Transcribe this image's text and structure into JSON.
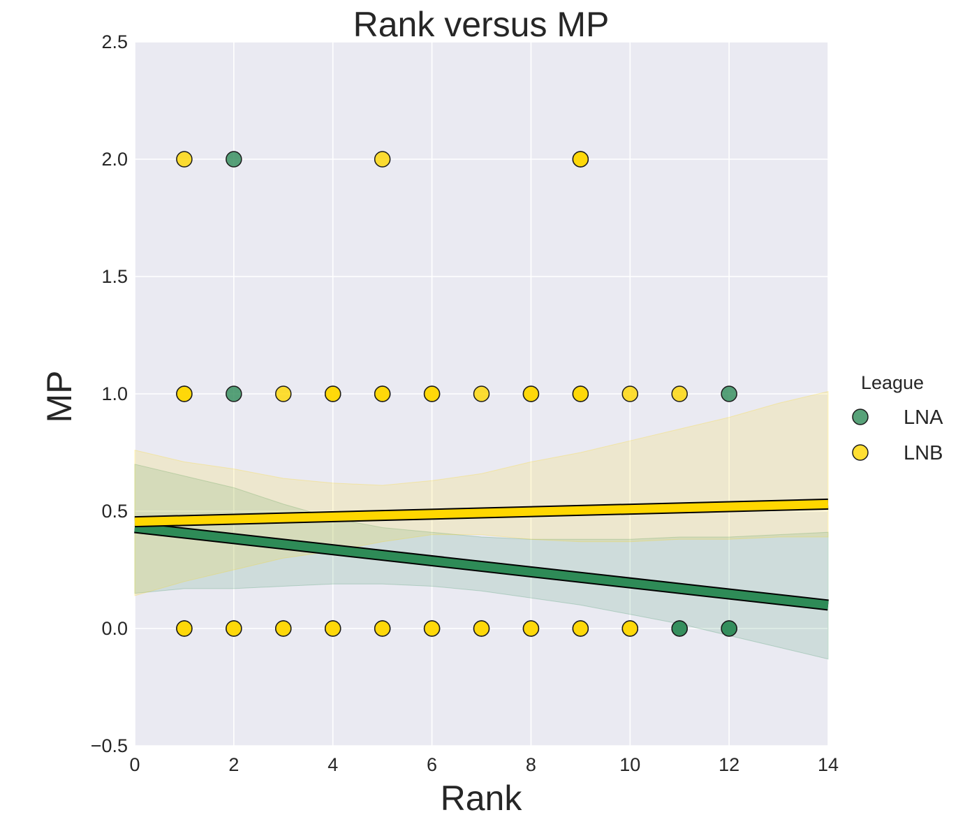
{
  "chart_data": {
    "type": "scatter",
    "title": "Rank versus MP",
    "xlabel": "Rank",
    "ylabel": "MP",
    "xlim": [
      0,
      14
    ],
    "ylim": [
      -0.5,
      2.5
    ],
    "x_ticks": [
      "0",
      "2",
      "4",
      "6",
      "8",
      "10",
      "12",
      "14"
    ],
    "y_ticks": [
      "−0.5",
      "0.0",
      "0.5",
      "1.0",
      "1.5",
      "2.0",
      "2.5"
    ],
    "grid": true,
    "legend": {
      "title": "League",
      "placement": "right",
      "entries": [
        "LNA",
        "LNB"
      ]
    },
    "series": [
      {
        "name": "LNA",
        "color": "#2e8b57",
        "points": [
          [
            2,
            2
          ],
          [
            2,
            1
          ],
          [
            12,
            1
          ],
          [
            11,
            0
          ],
          [
            11,
            0
          ],
          [
            12,
            0
          ],
          [
            12,
            0
          ]
        ],
        "regression": {
          "x": [
            0,
            14
          ],
          "y": [
            0.43,
            0.1
          ]
        },
        "ci": {
          "x": [
            0,
            1,
            2,
            3,
            4,
            5,
            6,
            7,
            8,
            9,
            10,
            11,
            12,
            13,
            14
          ],
          "upper": [
            0.7,
            0.65,
            0.6,
            0.53,
            0.47,
            0.43,
            0.41,
            0.39,
            0.38,
            0.38,
            0.38,
            0.39,
            0.39,
            0.4,
            0.41
          ],
          "lower": [
            0.15,
            0.17,
            0.17,
            0.18,
            0.19,
            0.19,
            0.18,
            0.16,
            0.13,
            0.1,
            0.06,
            0.02,
            -0.03,
            -0.08,
            -0.13
          ]
        }
      },
      {
        "name": "LNB",
        "color": "#ffd700",
        "points": [
          [
            1,
            2
          ],
          [
            5,
            2
          ],
          [
            9,
            2
          ],
          [
            9,
            2
          ],
          [
            1,
            1
          ],
          [
            1,
            1
          ],
          [
            3,
            1
          ],
          [
            4,
            1
          ],
          [
            4,
            1
          ],
          [
            5,
            1
          ],
          [
            5,
            1
          ],
          [
            6,
            1
          ],
          [
            6,
            1
          ],
          [
            7,
            1
          ],
          [
            8,
            1
          ],
          [
            8,
            1
          ],
          [
            9,
            1
          ],
          [
            9,
            1
          ],
          [
            10,
            1
          ],
          [
            11,
            1
          ],
          [
            1,
            0
          ],
          [
            1,
            0
          ],
          [
            2,
            0
          ],
          [
            2,
            0
          ],
          [
            3,
            0
          ],
          [
            3,
            0
          ],
          [
            4,
            0
          ],
          [
            4,
            0
          ],
          [
            5,
            0
          ],
          [
            5,
            0
          ],
          [
            6,
            0
          ],
          [
            6,
            0
          ],
          [
            7,
            0
          ],
          [
            7,
            0
          ],
          [
            8,
            0
          ],
          [
            8,
            0
          ],
          [
            9,
            0
          ],
          [
            9,
            0
          ],
          [
            10,
            0
          ],
          [
            10,
            0
          ]
        ],
        "regression": {
          "x": [
            0,
            14
          ],
          "y": [
            0.455,
            0.53
          ]
        },
        "ci": {
          "x": [
            0,
            1,
            2,
            3,
            4,
            5,
            6,
            7,
            8,
            9,
            10,
            11,
            12,
            13,
            14
          ],
          "upper": [
            0.76,
            0.71,
            0.68,
            0.64,
            0.62,
            0.61,
            0.63,
            0.66,
            0.71,
            0.75,
            0.8,
            0.85,
            0.9,
            0.96,
            1.01
          ],
          "lower": [
            0.14,
            0.2,
            0.25,
            0.3,
            0.33,
            0.37,
            0.4,
            0.4,
            0.38,
            0.37,
            0.37,
            0.38,
            0.38,
            0.39,
            0.39
          ]
        }
      }
    ]
  }
}
